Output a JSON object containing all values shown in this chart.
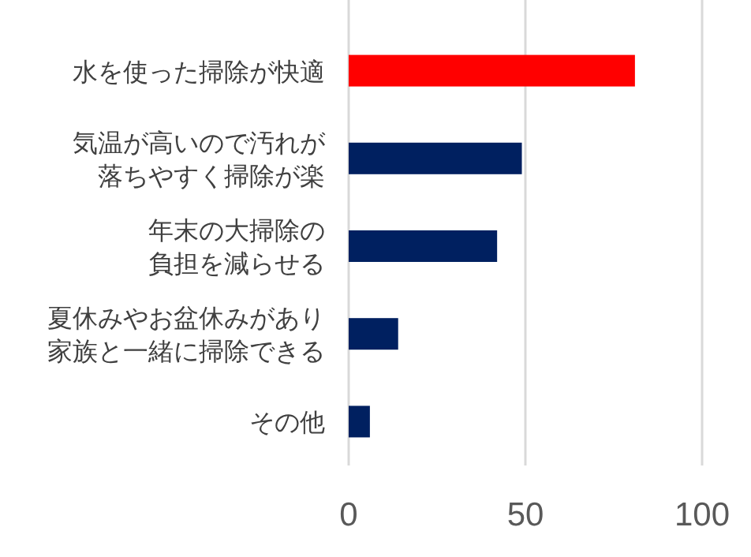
{
  "chart_data": {
    "type": "bar",
    "orientation": "horizontal",
    "categories": [
      "水を使った掃除が快適",
      "気温が高いので汚れが落ちやすく掃除が楽",
      "年末の大掃除の負担を減らせる",
      "夏休みやお盆休みがあり家族と一緒に掃除できる",
      "その他"
    ],
    "values": [
      81,
      49,
      42,
      14,
      6
    ],
    "colors": [
      "#ff0000",
      "#002060",
      "#002060",
      "#002060",
      "#002060"
    ],
    "xlim": [
      0,
      100
    ],
    "xticks": [
      0,
      50,
      100
    ],
    "grid": "x"
  }
}
